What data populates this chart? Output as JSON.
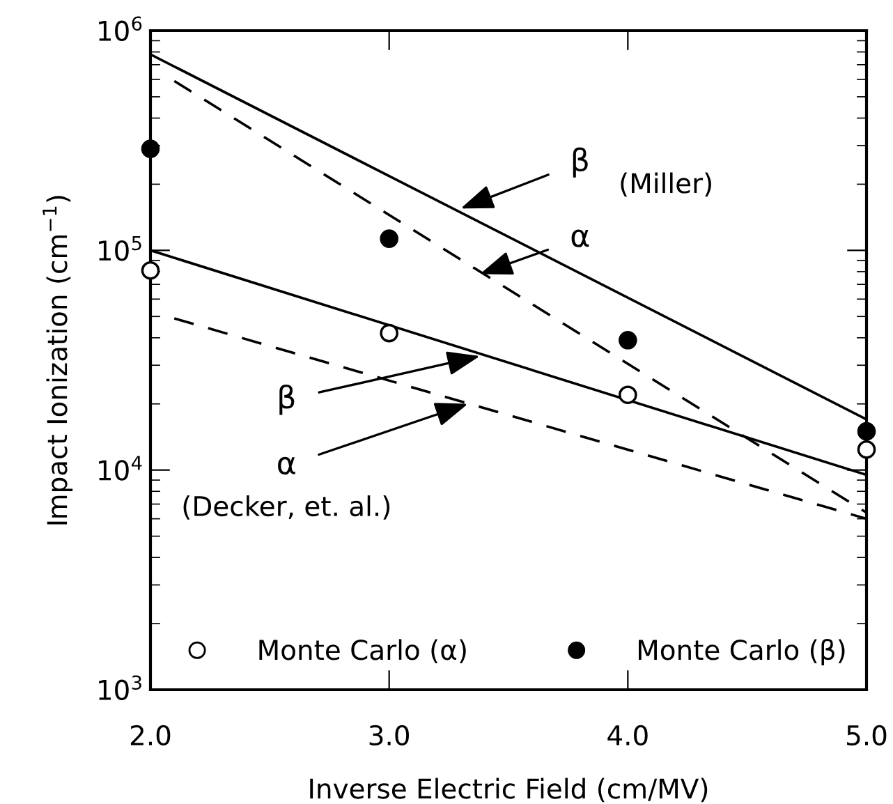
{
  "chart_data": {
    "type": "line",
    "xlabel": "Inverse Electric Field (cm/MV)",
    "ylabel": "Impact Ionization (cm$^{−1}$)",
    "log": "y",
    "xlim": [
      2.0,
      5.0
    ],
    "xticks": [
      {
        "value": 2.0,
        "label": "2.0"
      },
      {
        "value": 3.0,
        "label": "3.0"
      },
      {
        "value": 4.0,
        "label": "4.0"
      },
      {
        "value": 5.0,
        "label": "5.0"
      }
    ],
    "ylim": [
      1000,
      1000000
    ],
    "yticks": [
      {
        "value": 1000,
        "label": "10$^{3}$"
      },
      {
        "value": 10000,
        "label": "10$^{4}$"
      },
      {
        "value": 100000,
        "label": "10$^{5}$"
      },
      {
        "value": 1000000,
        "label": "10$^{6}$"
      }
    ],
    "grid": false,
    "legend": "bottom",
    "tick_labels": "xy",
    "series": [
      {
        "line_style": "solid",
        "color": "#000000",
        "x": [
          2.0,
          5.0
        ],
        "values": [
          780000,
          17000
        ]
      },
      {
        "line_style": "dashed",
        "color": "#000000",
        "x": [
          2.1,
          5.0
        ],
        "values": [
          590000,
          6400
        ]
      },
      {
        "line_style": "solid",
        "color": "#000000",
        "x": [
          2.0,
          5.0
        ],
        "values": [
          100000,
          9500
        ]
      },
      {
        "line_style": "dashed",
        "color": "#000000",
        "x": [
          2.1,
          5.0
        ],
        "values": [
          49000,
          6000
        ]
      },
      {
        "type": "scatter",
        "name": "Monte Carlo (α)",
        "marker": "circle",
        "color": "#ffffff",
        "x": [
          2.0,
          3.0,
          4.0,
          5.0
        ],
        "values": [
          81000,
          42000,
          22000,
          12400
        ]
      },
      {
        "type": "scatter",
        "name": "Monte Carlo (β)",
        "marker": "circle",
        "color": "#000000",
        "x": [
          2.0,
          3.0,
          4.0,
          5.0
        ],
        "values": [
          290000,
          113000,
          39000,
          15000
        ]
      }
    ],
    "annotations": [
      {
        "text": "β",
        "x": 3.3,
        "y": 155000
      },
      "(Miller)",
      {
        "text": "α",
        "x": 3.38,
        "y": 78000
      },
      {
        "text": "β",
        "x": 3.38,
        "y": 33000
      },
      {
        "text": "α",
        "x": 3.33,
        "y": 20000
      },
      "(Decker, et. al.)"
    ]
  }
}
